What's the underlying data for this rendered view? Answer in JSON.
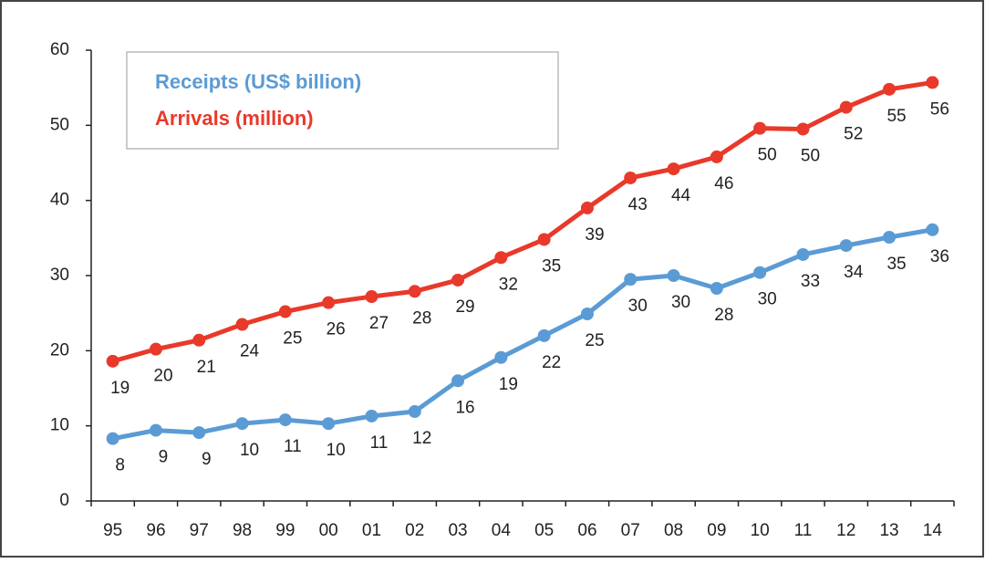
{
  "chart_data": {
    "type": "line",
    "categories": [
      "95",
      "96",
      "97",
      "98",
      "99",
      "00",
      "01",
      "02",
      "03",
      "04",
      "05",
      "06",
      "07",
      "08",
      "09",
      "10",
      "11",
      "12",
      "13",
      "14"
    ],
    "series": [
      {
        "name": "Receipts (US$ billion)",
        "color": "#5b9bd5",
        "values": [
          8.3,
          9.4,
          9.1,
          10.3,
          10.8,
          10.3,
          11.3,
          11.9,
          16.0,
          19.1,
          22.0,
          24.9,
          29.5,
          30.0,
          28.3,
          30.4,
          32.8,
          34.0,
          35.1,
          36.1
        ],
        "value_labels": [
          "8",
          "9",
          "9",
          "10",
          "11",
          "10",
          "11",
          "12",
          "16",
          "19",
          "22",
          "25",
          "30",
          "30",
          "28",
          "30",
          "33",
          "34",
          "35",
          "36"
        ]
      },
      {
        "name": "Arrivals (million)",
        "color": "#e8392a",
        "values": [
          18.6,
          20.2,
          21.4,
          23.5,
          25.2,
          26.4,
          27.2,
          27.9,
          29.4,
          32.4,
          34.8,
          39.0,
          43.0,
          44.2,
          45.8,
          49.6,
          49.5,
          52.4,
          54.8,
          55.7
        ],
        "value_labels": [
          "19",
          "20",
          "21",
          "24",
          "25",
          "26",
          "27",
          "28",
          "29",
          "32",
          "35",
          "39",
          "43",
          "44",
          "46",
          "50",
          "50",
          "52",
          "55",
          "56"
        ]
      }
    ],
    "ylim": [
      0,
      60
    ],
    "yticks": [
      0,
      10,
      20,
      30,
      40,
      50,
      60
    ],
    "grid": false,
    "legend": "upper left"
  }
}
